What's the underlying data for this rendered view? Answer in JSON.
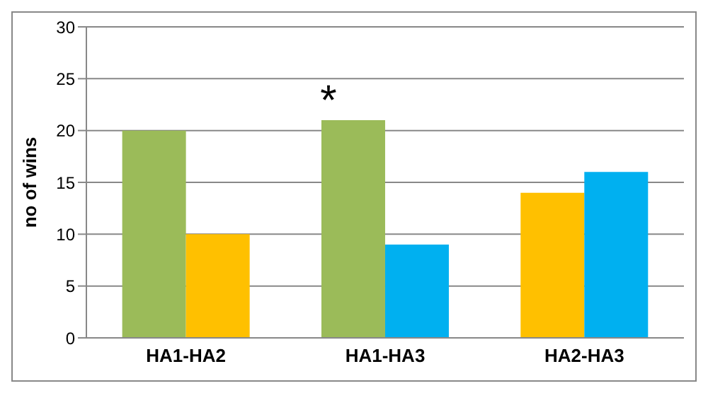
{
  "chart_data": {
    "type": "bar",
    "ylabel": "no of wins",
    "categories": [
      "HA1-HA2",
      "HA1-HA3",
      "HA2-HA3"
    ],
    "series": [
      {
        "colors": [
          "#9bbb59",
          "#9bbb59",
          "#ffc000"
        ],
        "values": [
          20,
          21,
          14
        ]
      },
      {
        "colors": [
          "#ffc000",
          "#00b0f0",
          "#00b0f0"
        ],
        "values": [
          10,
          9,
          16
        ]
      }
    ],
    "ylim": [
      0,
      30
    ],
    "yticks": [
      0,
      5,
      10,
      15,
      20,
      25,
      30
    ],
    "grid": "y",
    "legend": false,
    "annotations": [
      {
        "text": "*",
        "x": "HA1-HA3",
        "y": 21
      }
    ]
  }
}
